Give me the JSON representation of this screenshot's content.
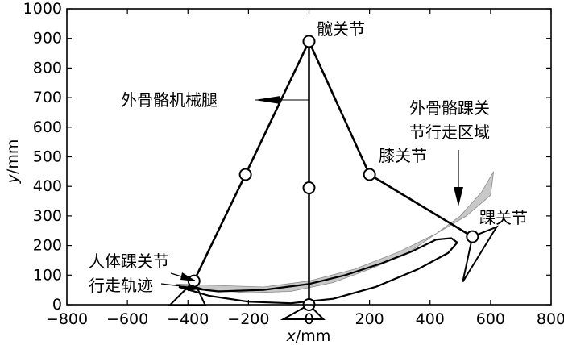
{
  "chart_data": {
    "type": "diagram",
    "xlabel_var": "x",
    "xlabel_unit": "/mm",
    "ylabel_var": "y",
    "ylabel_unit": "/mm",
    "xlim": [
      -800,
      800
    ],
    "ylim": [
      0,
      1000
    ],
    "x_ticks": [
      {
        "value": -800,
        "label": "−800"
      },
      {
        "value": -600,
        "label": "−600"
      },
      {
        "value": -400,
        "label": "−400"
      },
      {
        "value": -200,
        "label": "−200"
      },
      {
        "value": 0,
        "label": "0"
      },
      {
        "value": 200,
        "label": "200"
      },
      {
        "value": 400,
        "label": "400"
      },
      {
        "value": 600,
        "label": "600"
      },
      {
        "value": 800,
        "label": "800"
      }
    ],
    "y_ticks": [
      {
        "value": 0,
        "label": "0"
      },
      {
        "value": 100,
        "label": "100"
      },
      {
        "value": 200,
        "label": "200"
      },
      {
        "value": 300,
        "label": "300"
      },
      {
        "value": 400,
        "label": "400"
      },
      {
        "value": 500,
        "label": "500"
      },
      {
        "value": 600,
        "label": "600"
      },
      {
        "value": 700,
        "label": "700"
      },
      {
        "value": 800,
        "label": "800"
      },
      {
        "value": 900,
        "label": "900"
      },
      {
        "value": 1000,
        "label": "1000"
      }
    ],
    "joints": {
      "hip": [
        0,
        890
      ],
      "knee_left": [
        -210,
        440
      ],
      "knee_right": [
        200,
        440
      ],
      "knee_center": [
        0,
        395
      ],
      "ankle_left": [
        -380,
        80
      ],
      "ankle_right": [
        540,
        230
      ],
      "ankle_center": [
        0,
        0
      ]
    },
    "exo_ankle_region": [
      [
        -440,
        70
      ],
      [
        -300,
        65
      ],
      [
        -150,
        60
      ],
      [
        0,
        80
      ],
      [
        150,
        120
      ],
      [
        300,
        180
      ],
      [
        420,
        240
      ],
      [
        520,
        300
      ],
      [
        600,
        370
      ],
      [
        610,
        450
      ],
      [
        570,
        380
      ],
      [
        500,
        300
      ],
      [
        420,
        240
      ],
      [
        320,
        170
      ],
      [
        200,
        120
      ],
      [
        80,
        75
      ],
      [
        -60,
        45
      ],
      [
        -200,
        40
      ],
      [
        -330,
        50
      ],
      [
        -440,
        70
      ]
    ],
    "human_ankle_trajectory": [
      [
        -430,
        60
      ],
      [
        -330,
        30
      ],
      [
        -200,
        10
      ],
      [
        -60,
        5
      ],
      [
        80,
        20
      ],
      [
        220,
        60
      ],
      [
        360,
        120
      ],
      [
        460,
        175
      ],
      [
        490,
        210
      ],
      [
        470,
        225
      ],
      [
        420,
        220
      ],
      [
        340,
        180
      ],
      [
        240,
        140
      ],
      [
        120,
        100
      ],
      [
        0,
        70
      ],
      [
        -150,
        50
      ],
      [
        -300,
        45
      ],
      [
        -430,
        60
      ]
    ],
    "annotations": {
      "hip": "髋关节",
      "exo_leg": "外骨骼机械腿",
      "knee": "膝关节",
      "exo_ankle_region_line1": "外骨骼踝关",
      "exo_ankle_region_line2": "节行走区域",
      "ankle": "踝关节",
      "human_ankle_line1": "人体踝关节",
      "human_ankle_line2": "行走轨迹"
    }
  }
}
